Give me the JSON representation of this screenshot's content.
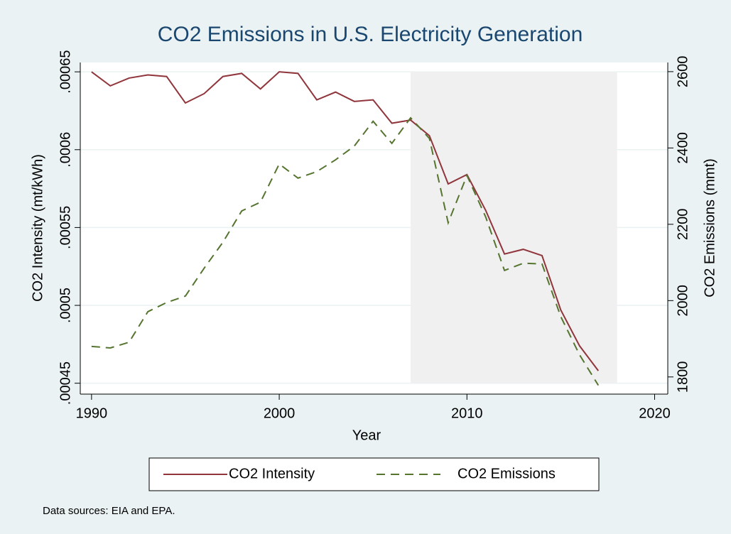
{
  "chart_data": {
    "type": "line",
    "title": "CO2 Emissions in U.S. Electricity Generation",
    "x_label": "Year",
    "y_label": "CO2 Intensity (mt/kWh)",
    "y2_label": "CO2 Emissions (mmt)",
    "note": "Data sources: EIA and EPA.",
    "x": [
      1990,
      1991,
      1992,
      1993,
      1994,
      1995,
      1996,
      1997,
      1998,
      1999,
      2000,
      2001,
      2002,
      2003,
      2004,
      2005,
      2006,
      2007,
      2008,
      2009,
      2010,
      2011,
      2012,
      2013,
      2014,
      2015,
      2016,
      2017
    ],
    "series": [
      {
        "name": "CO2 Intensity",
        "color": "#90353b",
        "dash": false,
        "values": [
          0.00065,
          0.000641,
          0.000646,
          0.000648,
          0.000647,
          0.00063,
          0.000636,
          0.000647,
          0.000649,
          0.000639,
          0.00065,
          0.000649,
          0.000632,
          0.000637,
          0.000631,
          0.000632,
          0.000617,
          0.000619,
          0.000609,
          0.000578,
          0.000584,
          0.000561,
          0.000533,
          0.000536,
          0.000532,
          0.000497,
          0.000474,
          0.000458
        ]
      },
      {
        "name": "CO2 Emissions",
        "color": "#55752f",
        "dash": true,
        "axis": "y2",
        "values": [
          1880,
          1876,
          1891,
          1971,
          1995,
          2012,
          2085,
          2153,
          2235,
          2258,
          2358,
          2321,
          2338,
          2369,
          2405,
          2470,
          2412,
          2479,
          2425,
          2204,
          2328,
          2219,
          2079,
          2098,
          2096,
          1958,
          1858,
          1778
        ]
      }
    ],
    "shaded_region": {
      "x": [
        2007,
        2018
      ],
      "y": [
        0.00045,
        0.00065
      ],
      "color": "#f0f0f0"
    },
    "xlim": [
      1989.4,
      2020.7
    ],
    "xticks": [
      1990,
      2000,
      2010,
      2020
    ],
    "ylim": [
      0.000443,
      0.000656
    ],
    "yticks": [
      {
        "value": 0.00045,
        "label": ".00045"
      },
      {
        "value": 0.0005,
        "label": ".0005"
      },
      {
        "value": 0.00055,
        "label": ".00055"
      },
      {
        "value": 0.0006,
        "label": ".0006"
      },
      {
        "value": 0.00065,
        "label": ".00065"
      }
    ],
    "y2lim": [
      1755,
      2624
    ],
    "y2ticks": [
      1800,
      2000,
      2200,
      2400,
      2600
    ],
    "grid": true
  }
}
